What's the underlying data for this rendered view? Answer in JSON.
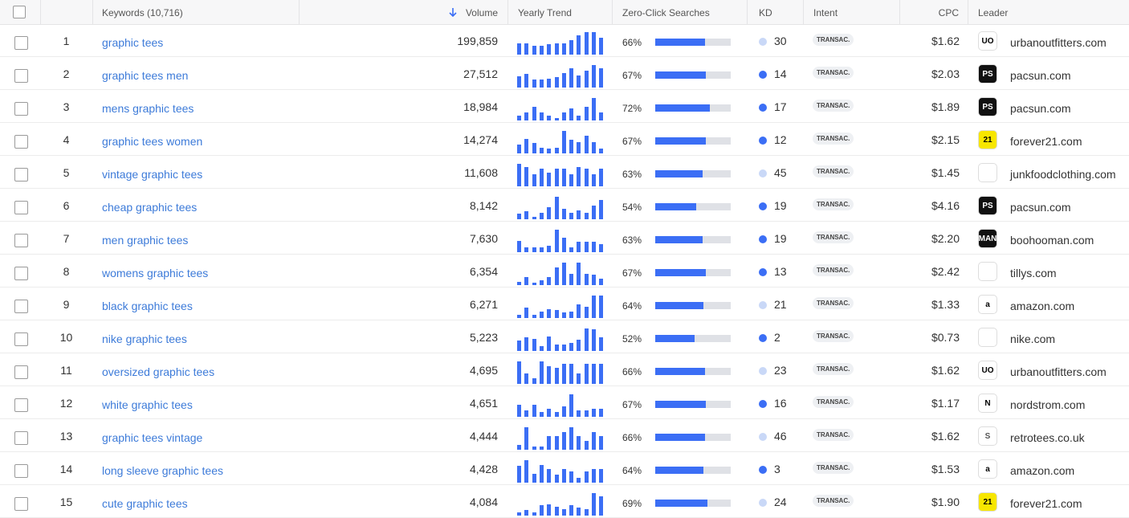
{
  "header": {
    "keywords": "Keywords (10,716)",
    "volume": "Volume",
    "trend": "Yearly Trend",
    "zero_click": "Zero-Click Searches",
    "kd": "KD",
    "intent": "Intent",
    "cpc": "CPC",
    "leader": "Leader"
  },
  "rows": [
    {
      "rank": "1",
      "keyword": "graphic tees",
      "volume": "199,859",
      "trend": [
        50,
        50,
        40,
        40,
        45,
        50,
        50,
        65,
        85,
        100,
        100,
        75
      ],
      "zero_click": {
        "value": 66,
        "label": "66%"
      },
      "kd": 30,
      "kd_color": "#c9d8f7",
      "intent": "TRANSAC.",
      "cpc": "$1.62",
      "leader": "urbanoutfitters.com",
      "logo": {
        "text": "UO",
        "bg": "#ffffff",
        "fg": "#000000"
      }
    },
    {
      "rank": "2",
      "keyword": "graphic tees men",
      "volume": "27,512",
      "trend": [
        50,
        60,
        35,
        35,
        40,
        45,
        65,
        85,
        55,
        75,
        100,
        85
      ],
      "zero_click": {
        "value": 67,
        "label": "67%"
      },
      "kd": 14,
      "kd_color": "#3b6ef5",
      "intent": "TRANSAC.",
      "cpc": "$2.03",
      "leader": "pacsun.com",
      "logo": {
        "text": "PS",
        "bg": "#111111",
        "fg": "#ffffff"
      }
    },
    {
      "rank": "3",
      "keyword": "mens graphic tees",
      "volume": "18,984",
      "trend": [
        20,
        35,
        60,
        35,
        20,
        10,
        35,
        55,
        20,
        60,
        100,
        35
      ],
      "zero_click": {
        "value": 72,
        "label": "72%"
      },
      "kd": 17,
      "kd_color": "#3b6ef5",
      "intent": "TRANSAC.",
      "cpc": "$1.89",
      "leader": "pacsun.com",
      "logo": {
        "text": "PS",
        "bg": "#111111",
        "fg": "#ffffff"
      }
    },
    {
      "rank": "4",
      "keyword": "graphic tees women",
      "volume": "14,274",
      "trend": [
        40,
        65,
        45,
        25,
        20,
        25,
        100,
        60,
        50,
        80,
        50,
        20
      ],
      "zero_click": {
        "value": 67,
        "label": "67%"
      },
      "kd": 12,
      "kd_color": "#3b6ef5",
      "intent": "TRANSAC.",
      "cpc": "$2.15",
      "leader": "forever21.com",
      "logo": {
        "text": "21",
        "bg": "#f7e600",
        "fg": "#000000"
      }
    },
    {
      "rank": "5",
      "keyword": "vintage graphic tees",
      "volume": "11,608",
      "trend": [
        100,
        85,
        55,
        80,
        60,
        80,
        80,
        55,
        85,
        80,
        55,
        80
      ],
      "zero_click": {
        "value": 63,
        "label": "63%"
      },
      "kd": 45,
      "kd_color": "#c9d8f7",
      "intent": "TRANSAC.",
      "cpc": "$1.45",
      "leader": "junkfoodclothing.com",
      "logo": {
        "bg": "#ffffff",
        "fg": "#000000"
      }
    },
    {
      "rank": "6",
      "keyword": "cheap graphic tees",
      "volume": "8,142",
      "trend": [
        25,
        35,
        10,
        30,
        55,
        100,
        45,
        30,
        40,
        30,
        60,
        85
      ],
      "zero_click": {
        "value": 54,
        "label": "54%"
      },
      "kd": 19,
      "kd_color": "#3b6ef5",
      "intent": "TRANSAC.",
      "cpc": "$4.16",
      "leader": "pacsun.com",
      "logo": {
        "text": "PS",
        "bg": "#111111",
        "fg": "#ffffff"
      }
    },
    {
      "rank": "7",
      "keyword": "men graphic tees",
      "volume": "7,630",
      "trend": [
        50,
        20,
        20,
        20,
        30,
        100,
        65,
        20,
        45,
        45,
        45,
        35
      ],
      "zero_click": {
        "value": 63,
        "label": "63%"
      },
      "kd": 19,
      "kd_color": "#3b6ef5",
      "intent": "TRANSAC.",
      "cpc": "$2.20",
      "leader": "boohooman.com",
      "logo": {
        "text": "MAN",
        "bg": "#111111",
        "fg": "#ffffff"
      }
    },
    {
      "rank": "8",
      "keyword": "womens graphic tees",
      "volume": "6,354",
      "trend": [
        15,
        35,
        10,
        20,
        35,
        80,
        100,
        50,
        100,
        50,
        45,
        30
      ],
      "zero_click": {
        "value": 67,
        "label": "67%"
      },
      "kd": 13,
      "kd_color": "#3b6ef5",
      "intent": "TRANSAC.",
      "cpc": "$2.42",
      "leader": "tillys.com",
      "logo": {
        "bg": "#ffffff",
        "fg": "#000000"
      }
    },
    {
      "rank": "9",
      "keyword": "black graphic tees",
      "volume": "6,271",
      "trend": [
        15,
        45,
        15,
        30,
        40,
        35,
        25,
        30,
        60,
        50,
        100,
        100
      ],
      "zero_click": {
        "value": 64,
        "label": "64%"
      },
      "kd": 21,
      "kd_color": "#c9d8f7",
      "intent": "TRANSAC.",
      "cpc": "$1.33",
      "leader": "amazon.com",
      "logo": {
        "text": "a",
        "bg": "#ffffff",
        "fg": "#000000"
      }
    },
    {
      "rank": "10",
      "keyword": "nike graphic tees",
      "volume": "5,223",
      "trend": [
        45,
        60,
        55,
        20,
        65,
        30,
        30,
        35,
        50,
        100,
        95,
        60
      ],
      "zero_click": {
        "value": 52,
        "label": "52%"
      },
      "kd": 2,
      "kd_color": "#3b6ef5",
      "intent": "TRANSAC.",
      "cpc": "$0.73",
      "leader": "nike.com",
      "logo": {
        "bg": "#ffffff",
        "fg": "#000000"
      }
    },
    {
      "rank": "11",
      "keyword": "oversized graphic tees",
      "volume": "4,695",
      "trend": [
        100,
        45,
        25,
        100,
        80,
        70,
        90,
        90,
        45,
        90,
        90,
        90
      ],
      "zero_click": {
        "value": 66,
        "label": "66%"
      },
      "kd": 23,
      "kd_color": "#c9d8f7",
      "intent": "TRANSAC.",
      "cpc": "$1.62",
      "leader": "urbanoutfitters.com",
      "logo": {
        "text": "UO",
        "bg": "#ffffff",
        "fg": "#000000"
      }
    },
    {
      "rank": "12",
      "keyword": "white graphic tees",
      "volume": "4,651",
      "trend": [
        55,
        30,
        55,
        20,
        35,
        20,
        45,
        100,
        30,
        30,
        35,
        35
      ],
      "zero_click": {
        "value": 67,
        "label": "67%"
      },
      "kd": 16,
      "kd_color": "#3b6ef5",
      "intent": "TRANSAC.",
      "cpc": "$1.17",
      "leader": "nordstrom.com",
      "logo": {
        "text": "N",
        "bg": "#ffffff",
        "fg": "#000000"
      }
    },
    {
      "rank": "13",
      "keyword": "graphic tees vintage",
      "volume": "4,444",
      "trend": [
        20,
        100,
        15,
        15,
        60,
        60,
        80,
        100,
        60,
        40,
        80,
        60
      ],
      "zero_click": {
        "value": 66,
        "label": "66%"
      },
      "kd": 46,
      "kd_color": "#c9d8f7",
      "intent": "TRANSAC.",
      "cpc": "$1.62",
      "leader": "retrotees.co.uk",
      "logo": {
        "text": "S",
        "bg": "#ffffff",
        "fg": "#555555"
      }
    },
    {
      "rank": "14",
      "keyword": "long sleeve graphic tees",
      "volume": "4,428",
      "trend": [
        75,
        100,
        40,
        80,
        60,
        35,
        60,
        50,
        20,
        50,
        60,
        60
      ],
      "zero_click": {
        "value": 64,
        "label": "64%"
      },
      "kd": 3,
      "kd_color": "#3b6ef5",
      "intent": "TRANSAC.",
      "cpc": "$1.53",
      "leader": "amazon.com",
      "logo": {
        "text": "a",
        "bg": "#ffffff",
        "fg": "#000000"
      }
    },
    {
      "rank": "15",
      "keyword": "cute graphic tees",
      "volume": "4,084",
      "trend": [
        15,
        25,
        15,
        45,
        50,
        40,
        30,
        45,
        35,
        30,
        100,
        85
      ],
      "zero_click": {
        "value": 69,
        "label": "69%"
      },
      "kd": 24,
      "kd_color": "#c9d8f7",
      "intent": "TRANSAC.",
      "cpc": "$1.90",
      "leader": "forever21.com",
      "logo": {
        "text": "21",
        "bg": "#f7e600",
        "fg": "#000000"
      }
    }
  ]
}
